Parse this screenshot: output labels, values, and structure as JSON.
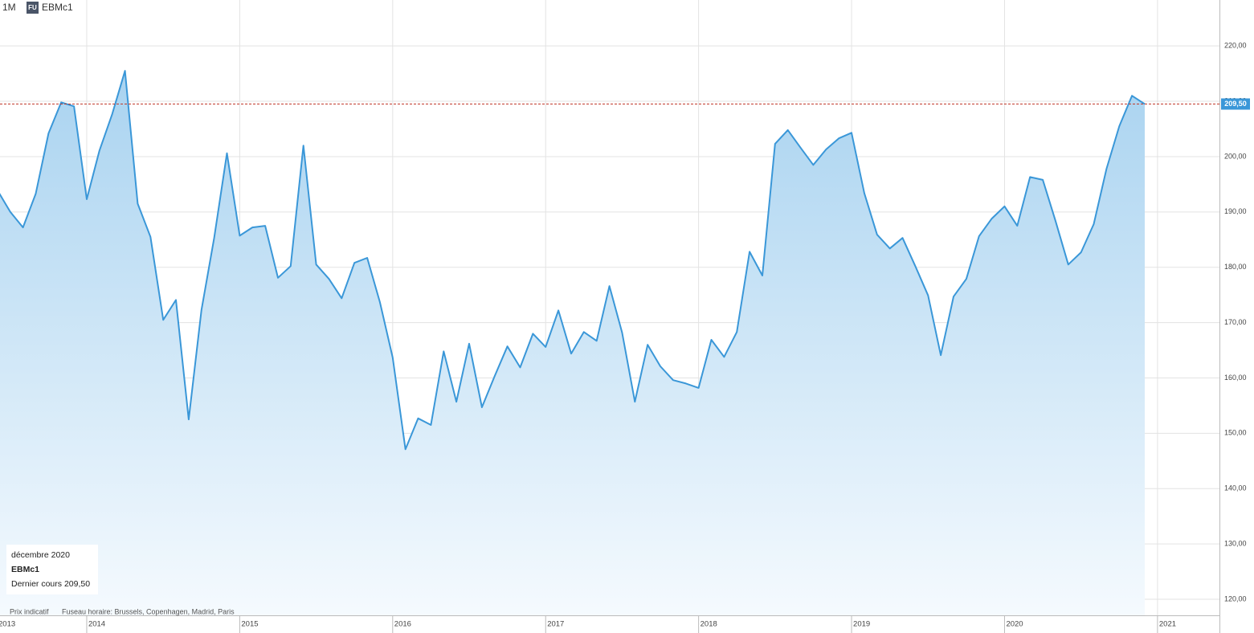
{
  "header": {
    "period": "1M",
    "badge": "FU",
    "symbol": "EBMc1"
  },
  "info_box": {
    "date": "décembre 2020",
    "symbol": "EBMc1",
    "last_label": "Dernier cours",
    "last_value": "209,50"
  },
  "footer": {
    "note": "Prix indicatif",
    "timezone": "Fuseau horaire: Brussels, Copenhagen, Madrid, Paris"
  },
  "chart_data": {
    "type": "area",
    "color": "#3a97d8",
    "grid": true,
    "last_price": {
      "value": 209.5,
      "label": "209,50"
    },
    "x": [
      2013.4167,
      2013.5,
      2013.5833,
      2013.6667,
      2013.75,
      2013.8333,
      2013.9167,
      2014,
      2014.0833,
      2014.1667,
      2014.25,
      2014.3333,
      2014.4167,
      2014.5,
      2014.5833,
      2014.6667,
      2014.75,
      2014.8333,
      2014.9167,
      2015,
      2015.0833,
      2015.1667,
      2015.25,
      2015.3333,
      2015.4167,
      2015.5,
      2015.5833,
      2015.6667,
      2015.75,
      2015.8333,
      2015.9167,
      2016,
      2016.0833,
      2016.1667,
      2016.25,
      2016.3333,
      2016.4167,
      2016.5,
      2016.5833,
      2016.6667,
      2016.75,
      2016.8333,
      2016.9167,
      2017,
      2017.0833,
      2017.1667,
      2017.25,
      2017.3333,
      2017.4167,
      2017.5,
      2017.5833,
      2017.6667,
      2017.75,
      2017.8333,
      2017.9167,
      2018,
      2018.0833,
      2018.1667,
      2018.25,
      2018.3333,
      2018.4167,
      2018.5,
      2018.5833,
      2018.6667,
      2018.75,
      2018.8333,
      2018.9167,
      2019,
      2019.0833,
      2019.1667,
      2019.25,
      2019.3333,
      2019.4167,
      2019.5,
      2019.5833,
      2019.6667,
      2019.75,
      2019.8333,
      2019.9167,
      2020,
      2020.0833,
      2020.1667,
      2020.25,
      2020.3333,
      2020.4167,
      2020.5,
      2020.5833,
      2020.6667,
      2020.75,
      2020.8333,
      2020.9167
    ],
    "values": [
      193.9,
      190.0,
      187.2,
      193.3,
      204.2,
      209.8,
      209.1,
      192.3,
      201.1,
      207.7,
      215.5,
      191.5,
      185.5,
      170.5,
      174.1,
      152.5,
      172.3,
      185.3,
      200.6,
      185.7,
      187.2,
      187.5,
      178.1,
      180.2,
      202.0,
      180.5,
      177.9,
      174.4,
      180.8,
      181.7,
      173.7,
      163.7,
      147.1,
      152.7,
      151.5,
      164.8,
      155.7,
      166.2,
      154.7,
      160.3,
      165.7,
      161.9,
      168.0,
      165.6,
      172.2,
      164.4,
      168.3,
      166.7,
      176.6,
      168.2,
      155.7,
      166.0,
      162.1,
      159.6,
      159.0,
      158.2,
      166.9,
      163.8,
      168.3,
      182.8,
      178.5,
      202.3,
      204.8,
      201.6,
      198.5,
      201.3,
      203.3,
      204.3,
      193.4,
      185.9,
      183.4,
      185.3,
      180.2,
      174.9,
      164.1,
      174.7,
      177.9,
      185.6,
      188.8,
      191.0,
      187.5,
      196.3,
      195.8,
      188.4,
      180.5,
      182.7,
      187.8,
      197.8,
      205.5,
      211.0,
      209.5
    ],
    "xlim": [
      2013.433,
      2021.405
    ],
    "xticks": [
      2013,
      2014,
      2015,
      2016,
      2017,
      2018,
      2019,
      2020,
      2021
    ],
    "ylim": [
      117.1,
      228.3
    ],
    "yticks": [
      {
        "value": 120,
        "label": "120,00"
      },
      {
        "value": 130,
        "label": "130,00"
      },
      {
        "value": 140,
        "label": "140,00"
      },
      {
        "value": 150,
        "label": "150,00"
      },
      {
        "value": 160,
        "label": "160,00"
      },
      {
        "value": 170,
        "label": "170,00"
      },
      {
        "value": 180,
        "label": "180,00"
      },
      {
        "value": 190,
        "label": "190,00"
      },
      {
        "value": 200,
        "label": "200,00"
      },
      {
        "value": 210,
        "label": "210,00"
      },
      {
        "value": 220,
        "label": "220,00"
      }
    ]
  }
}
